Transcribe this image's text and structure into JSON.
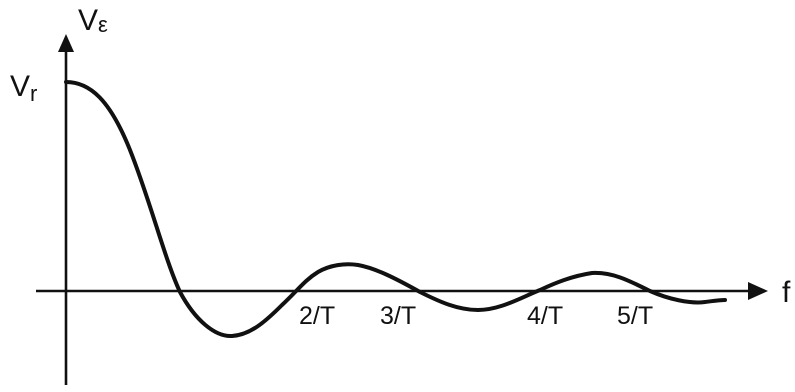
{
  "diagram": {
    "y_axis_label": {
      "main": "V",
      "sub": "ε"
    },
    "x_axis_label": "f",
    "peak_label": {
      "main": "V",
      "sub": "r"
    },
    "tick_labels": [
      "2/T",
      "3/T",
      "4/T",
      "5/T"
    ]
  },
  "colors": {
    "ink": "#111111",
    "background": "#ffffff"
  }
}
